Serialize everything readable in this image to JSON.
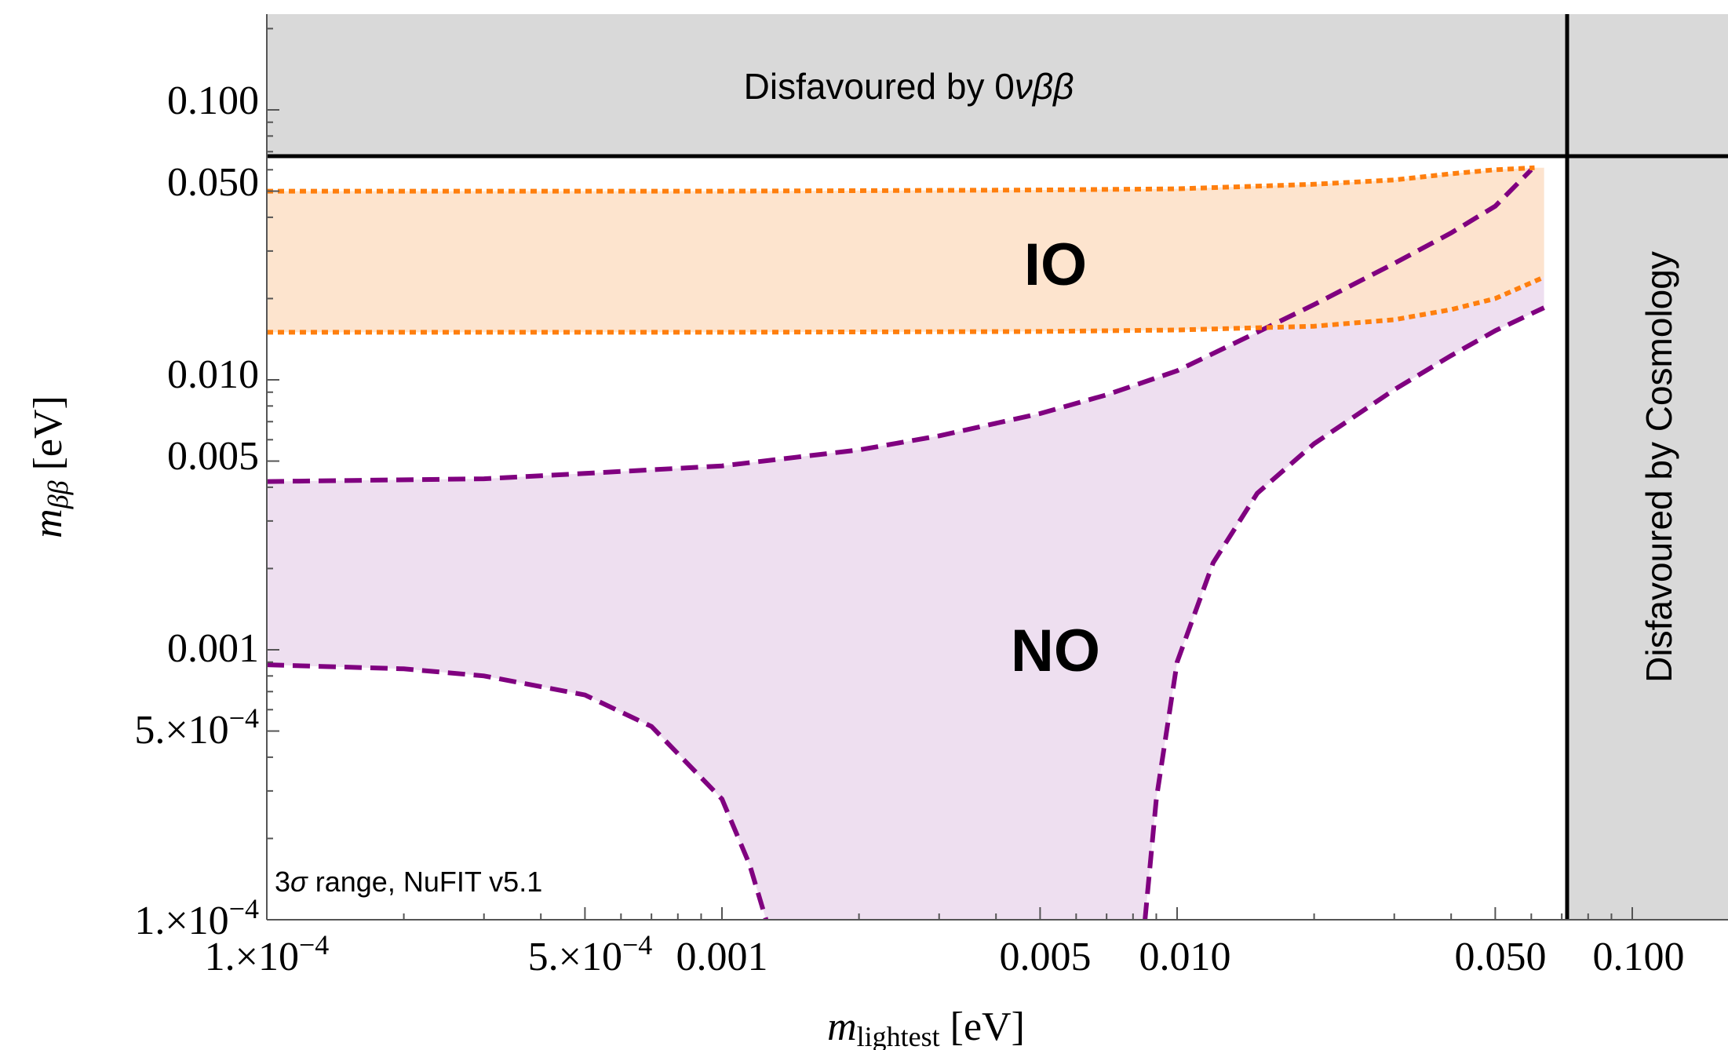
{
  "chart_data": {
    "type": "area",
    "x_scale": "log",
    "y_scale": "log",
    "xlim": [
      0.0001,
      0.2
    ],
    "ylim": [
      0.0001,
      0.25
    ],
    "xlabel_main": "m",
    "xlabel_sub": "lightest",
    "xlabel_unit": " [eV]",
    "ylabel_main": "m",
    "ylabel_sub": "ββ",
    "ylabel_unit": " [eV]",
    "grid": false,
    "x_ticks": [
      {
        "value": 0.0001,
        "label_mant": "1.×10",
        "label_exp": "−4",
        "label": ""
      },
      {
        "value": 0.0005,
        "label_mant": "5.×10",
        "label_exp": "−4",
        "label": ""
      },
      {
        "value": 0.001,
        "label": "0.001"
      },
      {
        "value": 0.005,
        "label": "0.005"
      },
      {
        "value": 0.01,
        "label": "0.010"
      },
      {
        "value": 0.05,
        "label": "0.050"
      },
      {
        "value": 0.1,
        "label": "0.100"
      }
    ],
    "y_ticks": [
      {
        "value": 0.0001,
        "label_mant": "1.×10",
        "label_exp": "−4",
        "label": ""
      },
      {
        "value": 0.0005,
        "label_mant": "5.×10",
        "label_exp": "−4",
        "label": ""
      },
      {
        "value": 0.001,
        "label": "0.001"
      },
      {
        "value": 0.005,
        "label": "0.005"
      },
      {
        "value": 0.01,
        "label": "0.010"
      },
      {
        "value": 0.05,
        "label": "0.050"
      },
      {
        "value": 0.1,
        "label": "0.100"
      }
    ],
    "limits": {
      "mbb_upper": 0.061,
      "cosmology_upper": 0.064
    },
    "series": [
      {
        "name": "IO",
        "color": "#FF7F0E",
        "fill": "#FDE3CB",
        "style": "dotted",
        "upper": {
          "x": [
            0.0001,
            0.001,
            0.005,
            0.01,
            0.02,
            0.03,
            0.04,
            0.05,
            0.061
          ],
          "y": [
            0.05,
            0.05,
            0.0505,
            0.051,
            0.053,
            0.055,
            0.058,
            0.06,
            0.061
          ]
        },
        "lower": {
          "x": [
            0.0001,
            0.001,
            0.005,
            0.01,
            0.02,
            0.03,
            0.04,
            0.05,
            0.064
          ],
          "y": [
            0.015,
            0.015,
            0.0151,
            0.0153,
            0.0158,
            0.0167,
            0.0182,
            0.02,
            0.024
          ]
        }
      },
      {
        "name": "NO",
        "color": "#800080",
        "fill": "#EEDFF0",
        "style": "dashed",
        "upper": {
          "x": [
            0.0001,
            0.0003,
            0.0005,
            0.001,
            0.002,
            0.003,
            0.005,
            0.007,
            0.01,
            0.015,
            0.02,
            0.03,
            0.04,
            0.05,
            0.06
          ],
          "y": [
            0.0042,
            0.0043,
            0.0045,
            0.0048,
            0.0055,
            0.0062,
            0.0075,
            0.0088,
            0.0108,
            0.015,
            0.019,
            0.027,
            0.035,
            0.044,
            0.06
          ]
        },
        "lower": {
          "x": [
            0.0001,
            0.0002,
            0.0003,
            0.0005,
            0.0007,
            0.001,
            0.00115,
            0.00125
          ],
          "y": [
            0.00088,
            0.00085,
            0.0008,
            0.00068,
            0.00052,
            0.00028,
            0.00016,
            0.0001
          ]
        },
        "lower2": {
          "x": [
            0.0085,
            0.009,
            0.01,
            0.012,
            0.015,
            0.02,
            0.03,
            0.04,
            0.05,
            0.064
          ],
          "y": [
            0.0001,
            0.00028,
            0.0009,
            0.0021,
            0.0038,
            0.0058,
            0.0092,
            0.0123,
            0.0152,
            0.0185
          ]
        }
      }
    ],
    "annotations": [
      {
        "key": "io",
        "text": "IO"
      },
      {
        "key": "no",
        "text": "NO"
      },
      {
        "key": "note",
        "text_pre": "3",
        "text_sym": "σ",
        "text_post": " range, NuFIT v5.1"
      }
    ],
    "excluded_regions": {
      "top_text_pre": "Disfavoured by 0",
      "top_text_ital": "νββ",
      "right_text": "Disfavoured by Cosmology",
      "fill": "#D9D9D9"
    }
  }
}
